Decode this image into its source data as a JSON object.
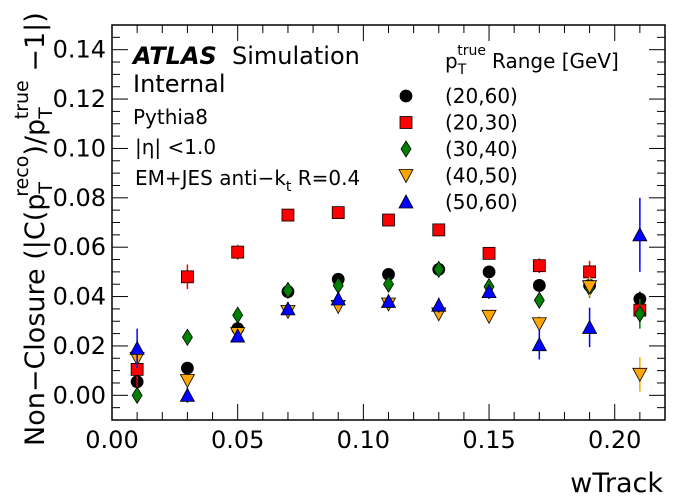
{
  "chart_data": {
    "type": "scatter",
    "xlabel": "wTrack",
    "ylabel": "Non−Closure (|C(p_T^reco)/p_T^true −1|)",
    "xlim": [
      0.0,
      0.22
    ],
    "ylim": [
      -0.01,
      0.15
    ],
    "x_ticks": [
      "0.00",
      "0.05",
      "0.10",
      "0.15",
      "0.20"
    ],
    "y_ticks": [
      "0.00",
      "0.02",
      "0.04",
      "0.06",
      "0.08",
      "0.10",
      "0.12",
      "0.14"
    ],
    "x_tick_values": [
      0.0,
      0.05,
      0.1,
      0.15,
      0.2
    ],
    "y_tick_values": [
      0.0,
      0.02,
      0.04,
      0.06,
      0.08,
      0.1,
      0.12,
      0.14
    ],
    "grid": false,
    "legend_position": "top-right",
    "legend_title": "p_T^true Range [GeV]",
    "annotations": {
      "atlas": "ATLAS",
      "simulation": "Simulation",
      "internal": "Internal",
      "generator": "Pythia8",
      "eta_cut": "|η| <1.0",
      "jets": "EM+JES anti−k_t  R=0.4"
    },
    "x": [
      0.01,
      0.03,
      0.05,
      0.07,
      0.09,
      0.11,
      0.13,
      0.15,
      0.17,
      0.19,
      0.21
    ],
    "series": [
      {
        "name": "(20,60)",
        "marker": "circle",
        "color": "#000000",
        "values": [
          0.0055,
          0.011,
          0.027,
          0.042,
          0.047,
          0.049,
          0.051,
          0.05,
          0.0445,
          0.0445,
          0.039
        ],
        "errors": [
          0.002,
          0.0015,
          0.002,
          0.0015,
          0.0015,
          0.0015,
          0.0015,
          0.0015,
          0.0015,
          0.002,
          0.003
        ]
      },
      {
        "name": "(20,30)",
        "marker": "square",
        "color": "#ff0000",
        "values": [
          0.0105,
          0.048,
          0.058,
          0.073,
          0.074,
          0.071,
          0.067,
          0.0575,
          0.0525,
          0.05,
          0.0345
        ],
        "errors": [
          0.009,
          0.005,
          0.003,
          0.002,
          0.002,
          0.002,
          0.002,
          0.0025,
          0.003,
          0.0045,
          0.004
        ]
      },
      {
        "name": "(30,40)",
        "marker": "diamond",
        "color": "#008000",
        "values": [
          0.0,
          0.0235,
          0.0325,
          0.0425,
          0.0445,
          0.045,
          0.051,
          0.044,
          0.0385,
          0.0435,
          0.033
        ],
        "errors": [
          0.002,
          0.002,
          0.0015,
          0.0015,
          0.0015,
          0.0015,
          0.0015,
          0.002,
          0.003,
          0.004,
          0.006
        ]
      },
      {
        "name": "(40,50)",
        "marker": "triangle-down",
        "color": "#ffa500",
        "values": [
          0.015,
          0.006,
          0.025,
          0.034,
          0.036,
          0.037,
          0.033,
          0.032,
          0.029,
          0.044,
          0.0085
        ],
        "errors": [
          0.004,
          0.002,
          0.002,
          0.0015,
          0.0015,
          0.0015,
          0.0015,
          0.002,
          0.003,
          0.004,
          0.007
        ]
      },
      {
        "name": "(50,60)",
        "marker": "triangle-up",
        "color": "#0000ff",
        "values": [
          0.019,
          0.0,
          0.024,
          0.035,
          0.039,
          0.038,
          0.0365,
          0.042,
          0.0205,
          0.0275,
          0.065
        ],
        "errors": [
          0.008,
          0.003,
          0.002,
          0.002,
          0.002,
          0.002,
          0.003,
          0.003,
          0.006,
          0.008,
          0.015
        ]
      }
    ]
  }
}
